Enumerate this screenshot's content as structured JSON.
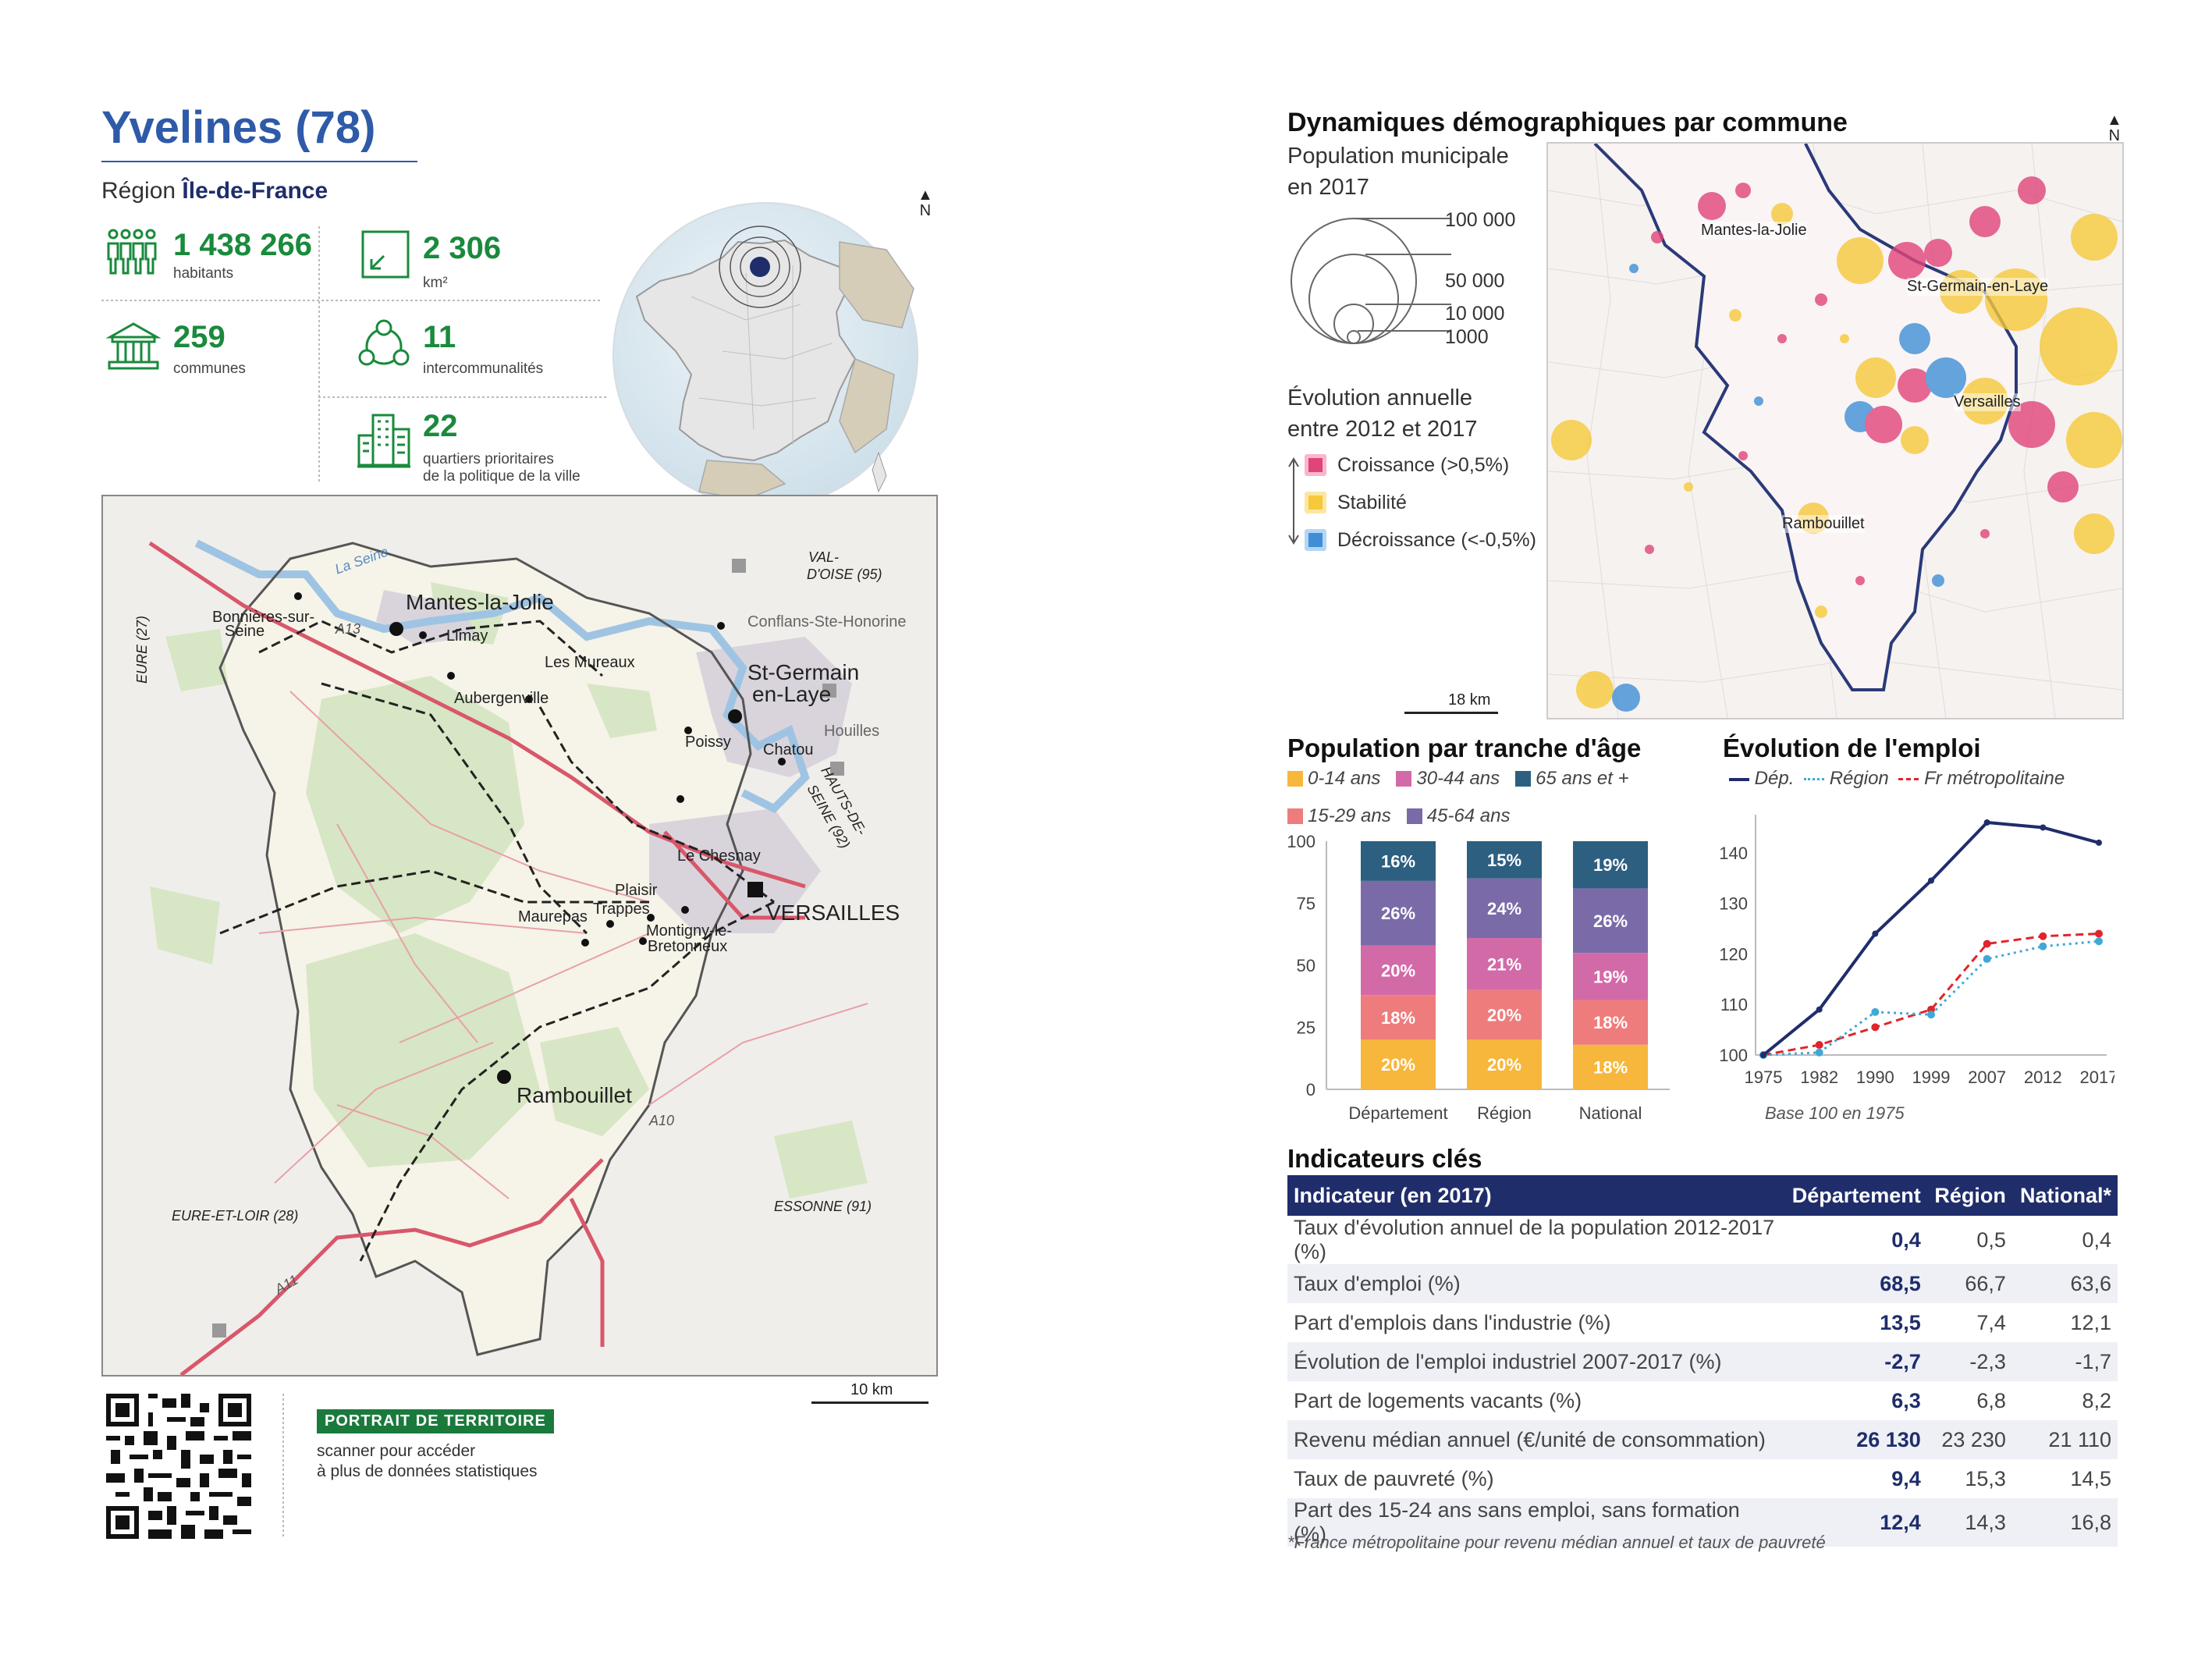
{
  "header": {
    "title": "Yvelines (78)",
    "region_label": "Région",
    "region_name": "Île-de-France"
  },
  "stats": {
    "population": {
      "value": "1 438 266",
      "label": "habitants"
    },
    "area": {
      "value": "2 306",
      "label": "km²"
    },
    "communes": {
      "value": "259",
      "label": "communes"
    },
    "intercommunalites": {
      "value": "11",
      "label": "intercommunalités"
    },
    "quartiers": {
      "value": "22",
      "label_line1": "quartiers prioritaires",
      "label_line2": "de la politique de la ville"
    }
  },
  "north_label": "N",
  "map": {
    "places": {
      "mantes": "Mantes-la-Jolie",
      "limay": "Limay",
      "bonnieres": "Bonnières-sur-",
      "bonnieres2": "Seine",
      "mureaux": "Les Mureaux",
      "aubergenville": "Aubergenville",
      "stgermain1": "St-Germain",
      "stgermain2": "en-Laye",
      "conflans": "Conflans-Ste-Honorine",
      "poissy": "Poissy",
      "chatou": "Chatou",
      "houilles": "Houilles",
      "lechesnay": "Le Chesnay",
      "versailles": "VERSAILLES",
      "plaisir": "Plaisir",
      "maurepas": "Maurepas",
      "trappes": "Trappes",
      "montigny1": "Montigny-le-",
      "montigny2": "Bretonneux",
      "rambouillet": "Rambouillet"
    },
    "departments": {
      "valdoise1": "VAL-",
      "valdoise2": "D'OISE (95)",
      "eure": "EURE (27)",
      "hautsdeseine1": "HAUTS-DE-",
      "hautsdeseine2": "SEINE (92)",
      "eureetloir": "EURE-ET-LOIR (28)",
      "essonne": "ESSONNE (91)"
    },
    "water": "La Seine",
    "roads": {
      "a13": "A13",
      "a10": "A10",
      "a11": "A11"
    },
    "scale": "10 km"
  },
  "qr": {
    "badge": "PORTRAIT DE TERRITOIRE",
    "line1": "scanner pour accéder",
    "line2": "à plus de données statistiques"
  },
  "demo": {
    "title": "Dynamiques démographiques par commune",
    "pop_title1": "Population municipale",
    "pop_title2": "en 2017",
    "sizes": [
      "100 000",
      "50 000",
      "10 000",
      "1000"
    ],
    "evol_title1": "Évolution annuelle",
    "evol_title2": "entre 2012 et 2017",
    "legend": [
      {
        "label": "Croissance (>0,5%)",
        "color": "#e0447a"
      },
      {
        "label": "Stabilité",
        "color": "#f6c93a"
      },
      {
        "label": "Décroissance (<-0,5%)",
        "color": "#3f8fd6"
      }
    ],
    "map_places": {
      "mantes": "Mantes-la-Jolie",
      "stgermain": "St-Germain-en-Laye",
      "versailles": "Versailles",
      "rambouillet": "Rambouillet"
    },
    "scale": "18 km"
  },
  "age_chart_title": "Population par tranche d'âge",
  "emploi_chart_title": "Évolution de l'emploi",
  "chart_data": [
    {
      "type": "bar",
      "stacked": true,
      "categories": [
        "Département",
        "Région",
        "National"
      ],
      "series": [
        {
          "name": "0-14 ans",
          "color": "#f6b73c",
          "values": [
            20,
            20,
            18
          ]
        },
        {
          "name": "15-29 ans",
          "color": "#ef7c7c",
          "values": [
            18,
            20,
            18
          ]
        },
        {
          "name": "30-44 ans",
          "color": "#d36aa8",
          "values": [
            20,
            21,
            19
          ]
        },
        {
          "name": "45-64 ans",
          "color": "#7a6ba8",
          "values": [
            26,
            24,
            26
          ]
        },
        {
          "name": "65 ans et +",
          "color": "#2d5f80",
          "values": [
            16,
            15,
            19
          ]
        }
      ],
      "ylim": [
        0,
        100
      ],
      "yticks": [
        0,
        25,
        50,
        75,
        100
      ],
      "legend_position": "top"
    },
    {
      "type": "line",
      "x": [
        "1975",
        "1982",
        "1990",
        "1999",
        "2007",
        "2012",
        "2017"
      ],
      "series": [
        {
          "name": "Dép.",
          "color": "#1f2d6b",
          "style": "solid",
          "values": [
            100,
            109,
            124,
            134.5,
            146,
            145,
            142
          ]
        },
        {
          "name": "Région",
          "color": "#3fa9d6",
          "style": "dotted",
          "values": [
            100,
            100.5,
            108.5,
            108,
            119,
            121.5,
            122.5
          ]
        },
        {
          "name": "Fr métropolitaine",
          "color": "#e0252c",
          "style": "dashed",
          "values": [
            100,
            102,
            105.5,
            109,
            122,
            123.5,
            124
          ]
        }
      ],
      "ylim": [
        100,
        146
      ],
      "yticks": [
        100,
        110,
        120,
        130,
        140
      ],
      "note": "Base 100 en 1975",
      "legend_position": "top"
    }
  ],
  "indicators": {
    "title": "Indicateurs clés",
    "headers": [
      "Indicateur (en 2017)",
      "Département",
      "Région",
      "National*"
    ],
    "rows": [
      [
        "Taux d'évolution annuel de la population 2012-2017 (%)",
        "0,4",
        "0,5",
        "0,4"
      ],
      [
        "Taux d'emploi (%)",
        "68,5",
        "66,7",
        "63,6"
      ],
      [
        "Part d'emplois dans l'industrie (%)",
        "13,5",
        "7,4",
        "12,1"
      ],
      [
        "Évolution de l'emploi industriel 2007-2017 (%)",
        "-2,7",
        "-2,3",
        "-1,7"
      ],
      [
        "Part de logements vacants (%)",
        "6,3",
        "6,8",
        "8,2"
      ],
      [
        "Revenu médian annuel (€/unité de consommation)",
        "26 130",
        "23 230",
        "21 110"
      ],
      [
        "Taux de pauvreté (%)",
        "9,4",
        "15,3",
        "14,5"
      ],
      [
        "Part des 15-24 ans sans emploi, sans formation (%)",
        "12,4",
        "14,3",
        "16,8"
      ]
    ],
    "footnote": "*France métropolitaine pour revenu médian annuel et taux de pauvreté"
  }
}
